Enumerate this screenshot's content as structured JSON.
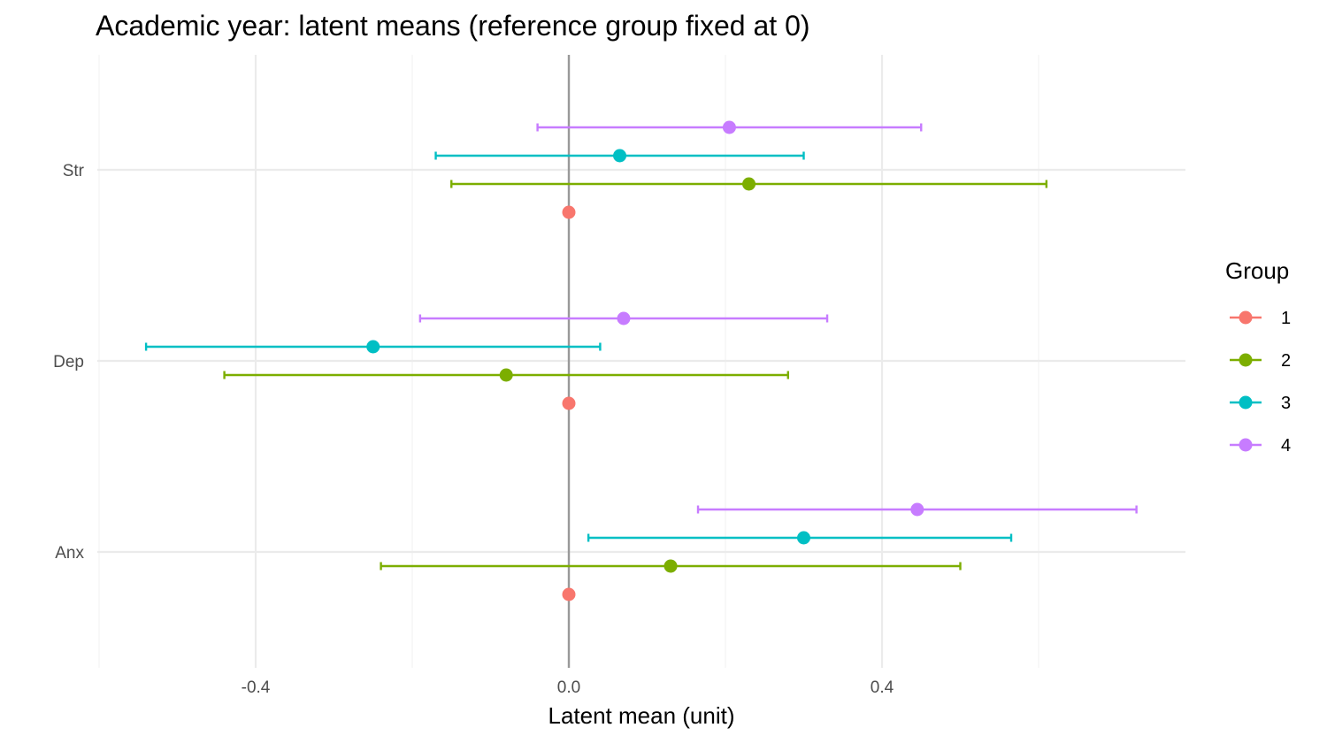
{
  "chart_data": {
    "type": "scatter",
    "title": "Academic year: latent means (reference group fixed at 0)",
    "xlabel": "Latent mean (unit)",
    "ylabel": "",
    "xlim": [
      -0.6,
      0.78
    ],
    "x_ticks": [
      -0.4,
      0.0,
      0.4
    ],
    "x_tick_labels": [
      "-0.4",
      "0.0",
      "0.4"
    ],
    "categories": [
      "Anx",
      "Dep",
      "Str"
    ],
    "reference_line_x": 0,
    "grid": true,
    "legend": {
      "title": "Group",
      "placement": "right"
    },
    "series": [
      {
        "name": "1",
        "color": "#F8766D",
        "values": [
          {
            "y": "Anx",
            "x": 0,
            "low": null,
            "high": null
          },
          {
            "y": "Dep",
            "x": 0,
            "low": null,
            "high": null
          },
          {
            "y": "Str",
            "x": 0,
            "low": null,
            "high": null
          }
        ]
      },
      {
        "name": "2",
        "color": "#7CAE00",
        "values": [
          {
            "y": "Anx",
            "x": 0.13,
            "low": -0.24,
            "high": 0.5
          },
          {
            "y": "Dep",
            "x": -0.08,
            "low": -0.44,
            "high": 0.28
          },
          {
            "y": "Str",
            "x": 0.23,
            "low": -0.15,
            "high": 0.61
          }
        ]
      },
      {
        "name": "3",
        "color": "#00BFC4",
        "values": [
          {
            "y": "Anx",
            "x": 0.3,
            "low": 0.025,
            "high": 0.565
          },
          {
            "y": "Dep",
            "x": -0.25,
            "low": -0.54,
            "high": 0.04
          },
          {
            "y": "Str",
            "x": 0.065,
            "low": -0.17,
            "high": 0.3
          }
        ]
      },
      {
        "name": "4",
        "color": "#C77CFF",
        "values": [
          {
            "y": "Anx",
            "x": 0.445,
            "low": 0.165,
            "high": 0.725
          },
          {
            "y": "Dep",
            "x": 0.07,
            "low": -0.19,
            "high": 0.33
          },
          {
            "y": "Str",
            "x": 0.205,
            "low": -0.04,
            "high": 0.45
          }
        ]
      }
    ]
  }
}
